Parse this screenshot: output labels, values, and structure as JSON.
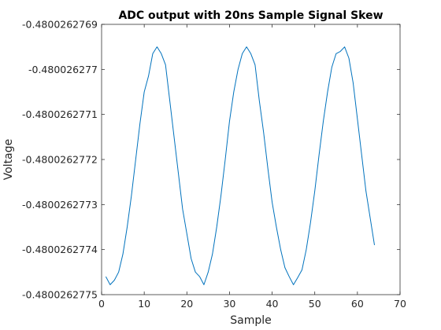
{
  "chart_data": {
    "type": "line",
    "title": "ADC output with 20ns Sample Signal Skew",
    "xlabel": "Sample",
    "ylabel": "Voltage",
    "xlim": [
      0,
      70
    ],
    "ylim": [
      -0.4800262775,
      -0.4800262769
    ],
    "xticks": [
      0,
      10,
      20,
      30,
      40,
      50,
      60,
      70
    ],
    "xtick_labels": [
      "0",
      "10",
      "20",
      "30",
      "40",
      "50",
      "60",
      "70"
    ],
    "yticks": [
      -0.4800262769,
      -0.480026277,
      -0.4800262771,
      -0.4800262772,
      -0.4800262773,
      -0.4800262774,
      -0.4800262775
    ],
    "ytick_labels": [
      "-0.4800262769",
      "-0.480026277",
      "-0.4800262771",
      "-0.4800262772",
      "-0.4800262773",
      "-0.4800262774",
      "-0.4800262775"
    ],
    "grid": false,
    "line_color": "#0072bd",
    "x": [
      1,
      2,
      3,
      4,
      5,
      6,
      7,
      8,
      9,
      10,
      11,
      12,
      13,
      14,
      15,
      16,
      17,
      18,
      19,
      20,
      21,
      22,
      23,
      24,
      25,
      26,
      27,
      28,
      29,
      30,
      31,
      32,
      33,
      34,
      35,
      36,
      37,
      38,
      39,
      40,
      41,
      42,
      43,
      44,
      45,
      46,
      47,
      48,
      49,
      50,
      51,
      52,
      53,
      54,
      55,
      56,
      57,
      58,
      59,
      60,
      61,
      62,
      63,
      64
    ],
    "y": [
      -0.48002627746,
      -0.480026277478,
      -0.480026277468,
      -0.48002627745,
      -0.48002627741,
      -0.48002627735,
      -0.48002627728,
      -0.4800262772,
      -0.48002627712,
      -0.48002627705,
      -0.480026277015,
      -0.480026276965,
      -0.48002627695,
      -0.480026276965,
      -0.48002627699,
      -0.48002627707,
      -0.48002627715,
      -0.48002627723,
      -0.48002627731,
      -0.480026277365,
      -0.48002627742,
      -0.48002627745,
      -0.48002627746,
      -0.480026277478,
      -0.48002627745,
      -0.48002627741,
      -0.48002627735,
      -0.48002627728,
      -0.4800262772,
      -0.480026277115,
      -0.48002627705,
      -0.480026277,
      -0.480026276965,
      -0.48002627695,
      -0.480026276965,
      -0.48002627699,
      -0.48002627707,
      -0.48002627714,
      -0.48002627722,
      -0.480026277295,
      -0.48002627735,
      -0.4800262774,
      -0.48002627744,
      -0.48002627746,
      -0.480026277478,
      -0.480026277462,
      -0.480026277445,
      -0.4800262774,
      -0.48002627734,
      -0.48002627727,
      -0.48002627719,
      -0.480026277115,
      -0.48002627705,
      -0.480026276995,
      -0.480026276965,
      -0.48002627696,
      -0.48002627695,
      -0.480026276975,
      -0.48002627703,
      -0.48002627711,
      -0.48002627719,
      -0.48002627727,
      -0.48002627733,
      -0.48002627739
    ]
  }
}
